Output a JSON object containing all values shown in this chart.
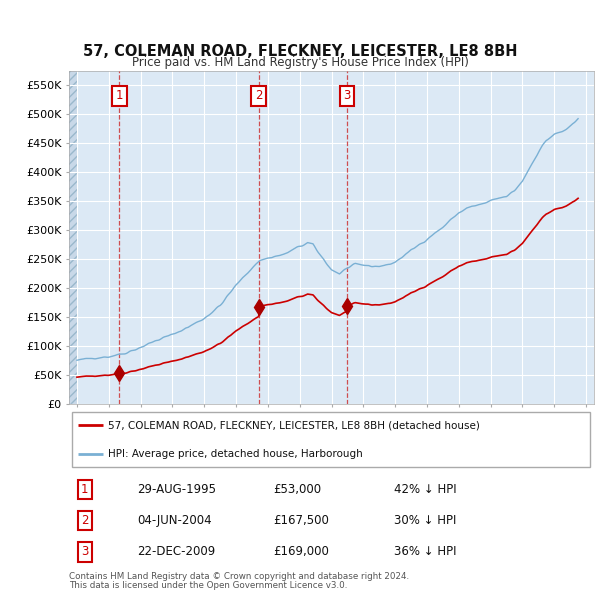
{
  "title": "57, COLEMAN ROAD, FLECKNEY, LEICESTER, LE8 8BH",
  "subtitle": "Price paid vs. HM Land Registry's House Price Index (HPI)",
  "legend_label_red": "57, COLEMAN ROAD, FLECKNEY, LEICESTER, LE8 8BH (detached house)",
  "legend_label_blue": "HPI: Average price, detached house, Harborough",
  "footer1": "Contains HM Land Registry data © Crown copyright and database right 2024.",
  "footer2": "This data is licensed under the Open Government Licence v3.0.",
  "sales": [
    {
      "num": 1,
      "date_str": "29-AUG-1995",
      "date_x": 1995.66,
      "price": 53000,
      "hpi_rel": "42% ↓ HPI"
    },
    {
      "num": 2,
      "date_str": "04-JUN-2004",
      "date_x": 2004.42,
      "price": 167500,
      "hpi_rel": "30% ↓ HPI"
    },
    {
      "num": 3,
      "date_str": "22-DEC-2009",
      "date_x": 2009.97,
      "price": 169000,
      "hpi_rel": "36% ↓ HPI"
    }
  ],
  "ylim": [
    0,
    575000
  ],
  "yticks": [
    0,
    50000,
    100000,
    150000,
    200000,
    250000,
    300000,
    350000,
    400000,
    450000,
    500000,
    550000
  ],
  "ytick_labels": [
    "£0",
    "£50K",
    "£100K",
    "£150K",
    "£200K",
    "£250K",
    "£300K",
    "£350K",
    "£400K",
    "£450K",
    "£500K",
    "£550K"
  ],
  "xlim_start": 1992.5,
  "xlim_end": 2025.5,
  "background_color": "#dce9f5",
  "hatch_color": "#c8d8e8",
  "grid_color": "#ffffff",
  "red_line_color": "#cc0000",
  "blue_line_color": "#7ab0d4",
  "sale_marker_color": "#aa0000",
  "dashed_line_color": "#cc3333",
  "box_color": "#cc0000"
}
